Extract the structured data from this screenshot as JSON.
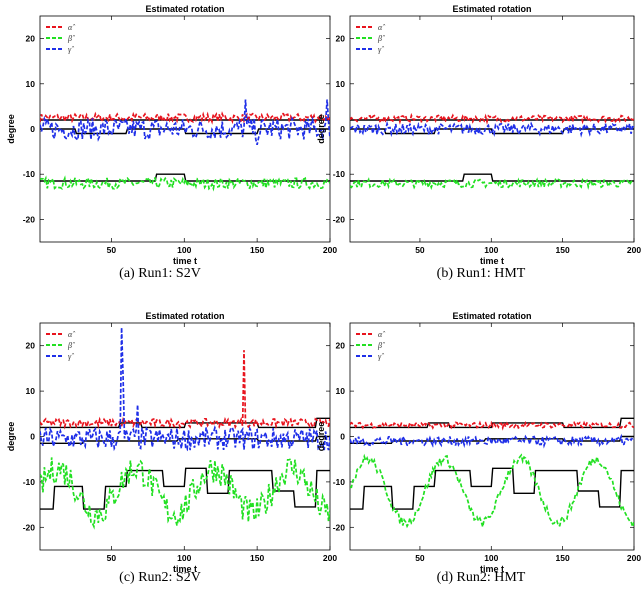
{
  "captions": [
    "(a) Run1:  S2V",
    "(b) Run1:  HMT",
    "(c) Run2:  S2V",
    "(d) Run2:  HMT"
  ],
  "legend": [
    "α̂",
    "β̂",
    "γ̂"
  ],
  "colors": {
    "alpha": "#e8141e",
    "beta": "#22e022",
    "gamma": "#1f2fe8",
    "truth": "#000000"
  },
  "chart_data": [
    {
      "type": "line",
      "title": "Estimated rotation",
      "xlabel": "time t",
      "ylabel": "degree",
      "xlim": [
        1,
        200
      ],
      "ylim": [
        -25,
        25
      ],
      "xticks": [
        50,
        100,
        150,
        200
      ],
      "yticks": [
        20,
        10,
        0,
        -10,
        -20
      ],
      "legend_position": "top-left",
      "series": [
        {
          "name": "α̂",
          "role": "estimate",
          "key": "alpha",
          "base": 2.5,
          "noise": 0.9
        },
        {
          "name": "β̂",
          "role": "estimate",
          "key": "beta",
          "base": -12,
          "noise": 1.2
        },
        {
          "name": "γ̂",
          "role": "estimate",
          "key": "gamma",
          "base": 0,
          "noise": 2.4,
          "spikes": [
            [
              142,
              6.5
            ],
            [
              150,
              -3.5
            ],
            [
              198,
              6.5
            ]
          ]
        }
      ],
      "truth": [
        {
          "x": [
            1,
            200
          ],
          "y": [
            2,
            2
          ]
        },
        {
          "x": [
            1,
            25,
            26,
            60,
            61,
            100,
            101,
            150,
            151,
            200
          ],
          "y": [
            0,
            0,
            -1,
            -1,
            0,
            0,
            -1,
            -1,
            0,
            0
          ]
        },
        {
          "x": [
            1,
            80,
            81,
            100,
            101,
            200
          ],
          "y": [
            -11.5,
            -11.5,
            -10,
            -10,
            -11.5,
            -11.5
          ]
        }
      ]
    },
    {
      "type": "line",
      "title": "Estimated rotation",
      "xlabel": "time t",
      "ylabel": "degree",
      "xlim": [
        1,
        200
      ],
      "ylim": [
        -25,
        25
      ],
      "xticks": [
        50,
        100,
        150,
        200
      ],
      "yticks": [
        20,
        10,
        0,
        -10,
        -20
      ],
      "legend_position": "top-left",
      "series": [
        {
          "name": "α̂",
          "role": "estimate",
          "key": "alpha",
          "base": 2.3,
          "noise": 0.7
        },
        {
          "name": "β̂",
          "role": "estimate",
          "key": "beta",
          "base": -12,
          "noise": 0.9
        },
        {
          "name": "γ̂",
          "role": "estimate",
          "key": "gamma",
          "base": 0,
          "noise": 1.2
        }
      ],
      "truth": [
        {
          "x": [
            1,
            200
          ],
          "y": [
            2,
            2
          ]
        },
        {
          "x": [
            1,
            25,
            26,
            60,
            61,
            100,
            101,
            150,
            151,
            200
          ],
          "y": [
            0,
            0,
            -1,
            -1,
            0,
            0,
            -1,
            -1,
            0,
            0
          ]
        },
        {
          "x": [
            1,
            80,
            81,
            100,
            101,
            200
          ],
          "y": [
            -11.5,
            -11.5,
            -10,
            -10,
            -11.5,
            -11.5
          ]
        }
      ]
    },
    {
      "type": "line",
      "title": "Estimated rotation",
      "xlabel": "time t",
      "ylabel": "degree",
      "xlim": [
        1,
        200
      ],
      "ylim": [
        -25,
        25
      ],
      "xticks": [
        50,
        100,
        150,
        200
      ],
      "yticks": [
        20,
        10,
        0,
        -10,
        -20
      ],
      "legend_position": "top-left",
      "series": [
        {
          "name": "α̂",
          "role": "estimate",
          "key": "alpha",
          "base": 3,
          "noise": 0.9,
          "spikes": [
            [
              141,
              19
            ],
            [
              142,
              3
            ]
          ]
        },
        {
          "name": "β̂",
          "role": "estimate",
          "key": "beta",
          "base": -12,
          "noise": 3.2,
          "wave": 5
        },
        {
          "name": "γ̂",
          "role": "estimate",
          "key": "gamma",
          "base": -0.5,
          "noise": 2.5,
          "spikes": [
            [
              57,
              24
            ],
            [
              58,
              13
            ],
            [
              68,
              7
            ]
          ]
        }
      ],
      "truth": [
        {
          "x": [
            1,
            55,
            56,
            70,
            71,
            100,
            101,
            150,
            151,
            190,
            191,
            200
          ],
          "y": [
            2,
            2,
            3,
            3,
            2,
            2,
            3,
            3,
            2,
            2,
            4,
            4
          ]
        },
        {
          "x": [
            1,
            30,
            31,
            95,
            96,
            150,
            151,
            190,
            191,
            200
          ],
          "y": [
            -1.5,
            -1.5,
            -1,
            -1,
            -0.5,
            -0.5,
            -1,
            -1,
            0,
            0
          ]
        },
        {
          "x": [
            1,
            10,
            11,
            30,
            31,
            45,
            46,
            60,
            61,
            85,
            86,
            100,
            101,
            115,
            116,
            130,
            131,
            160,
            161,
            175,
            176,
            190,
            191,
            200
          ],
          "y": [
            -16,
            -16,
            -11,
            -11,
            -16,
            -16,
            -11,
            -11,
            -7.5,
            -7.5,
            -11,
            -11,
            -7,
            -7,
            -12.5,
            -12.5,
            -7.5,
            -7.5,
            -12,
            -12,
            -15.5,
            -15.5,
            -7.5,
            -7.5
          ]
        }
      ]
    },
    {
      "type": "line",
      "title": "Estimated rotation",
      "xlabel": "time t",
      "ylabel": "degree",
      "xlim": [
        1,
        200
      ],
      "ylim": [
        -25,
        25
      ],
      "xticks": [
        50,
        100,
        150,
        200
      ],
      "yticks": [
        20,
        10,
        0,
        -10,
        -20
      ],
      "legend_position": "top-left",
      "series": [
        {
          "name": "α̂",
          "role": "estimate",
          "key": "alpha",
          "base": 2.5,
          "noise": 0.6
        },
        {
          "name": "β̂",
          "role": "estimate",
          "key": "beta",
          "base": -12,
          "noise": 1.0,
          "wave": 7
        },
        {
          "name": "γ̂",
          "role": "estimate",
          "key": "gamma",
          "base": -1,
          "noise": 1.0
        }
      ],
      "truth": [
        {
          "x": [
            1,
            55,
            56,
            70,
            71,
            100,
            101,
            150,
            151,
            190,
            191,
            200
          ],
          "y": [
            2,
            2,
            3,
            3,
            2,
            2,
            3,
            3,
            2,
            2,
            4,
            4
          ]
        },
        {
          "x": [
            1,
            30,
            31,
            95,
            96,
            150,
            151,
            190,
            191,
            200
          ],
          "y": [
            -1.5,
            -1.5,
            -1,
            -1,
            -0.5,
            -0.5,
            -1,
            -1,
            0,
            0
          ]
        },
        {
          "x": [
            1,
            10,
            11,
            30,
            31,
            45,
            46,
            60,
            61,
            85,
            86,
            100,
            101,
            115,
            116,
            130,
            131,
            160,
            161,
            175,
            176,
            190,
            191,
            200
          ],
          "y": [
            -16,
            -16,
            -11,
            -11,
            -16,
            -16,
            -11,
            -11,
            -7.5,
            -7.5,
            -11,
            -11,
            -7,
            -7,
            -12.5,
            -12.5,
            -7.5,
            -7.5,
            -12,
            -12,
            -15.5,
            -15.5,
            -7.5,
            -7.5
          ]
        }
      ]
    }
  ]
}
